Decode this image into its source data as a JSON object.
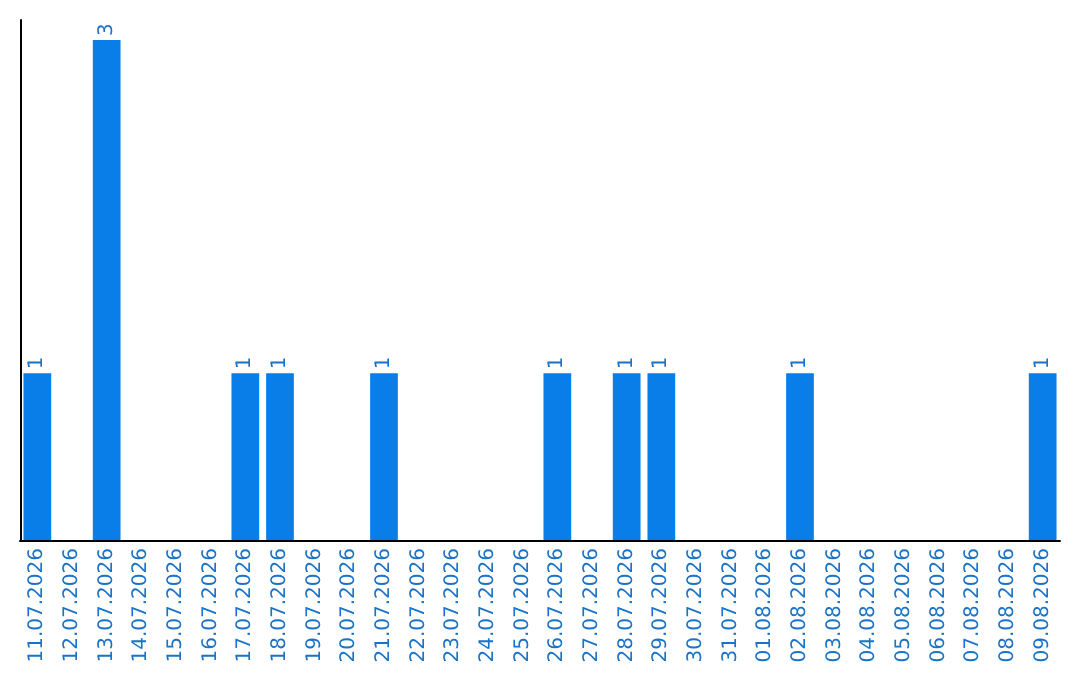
{
  "chart_data": {
    "type": "bar",
    "categories": [
      "11.07.2026",
      "12.07.2026",
      "13.07.2026",
      "14.07.2026",
      "15.07.2026",
      "16.07.2026",
      "17.07.2026",
      "18.07.2026",
      "19.07.2026",
      "20.07.2026",
      "21.07.2026",
      "22.07.2026",
      "23.07.2026",
      "24.07.2026",
      "25.07.2026",
      "26.07.2026",
      "27.07.2026",
      "28.07.2026",
      "29.07.2026",
      "30.07.2026",
      "31.07.2026",
      "01.08.2026",
      "02.08.2026",
      "03.08.2026",
      "04.08.2026",
      "05.08.2026",
      "06.08.2026",
      "07.08.2026",
      "08.08.2026",
      "09.08.2026"
    ],
    "values": [
      1,
      0,
      3,
      0,
      0,
      0,
      1,
      1,
      0,
      0,
      1,
      0,
      0,
      0,
      0,
      1,
      0,
      1,
      1,
      0,
      0,
      0,
      1,
      0,
      0,
      0,
      0,
      0,
      0,
      1
    ],
    "value_labels": [
      "1",
      null,
      "3",
      null,
      null,
      null,
      "1",
      "1",
      null,
      null,
      "1",
      null,
      null,
      null,
      null,
      "1",
      null,
      "1",
      "1",
      null,
      null,
      null,
      "1",
      null,
      null,
      null,
      null,
      null,
      null,
      "1"
    ],
    "color": "#0a7ee8",
    "tick_labels": "x"
  }
}
